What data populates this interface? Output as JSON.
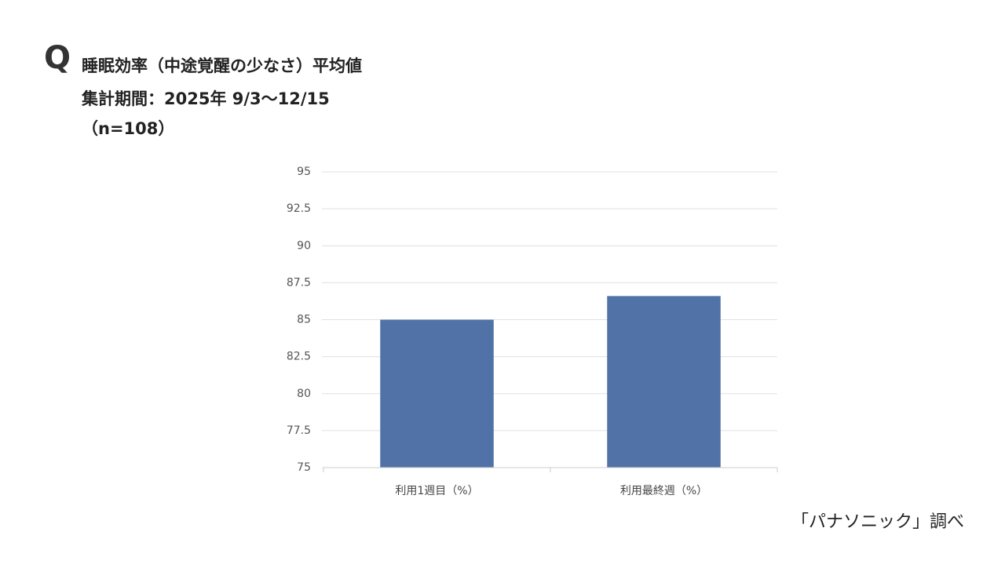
{
  "chart_data": {
    "type": "bar",
    "q_mark": "Q",
    "title": "睡眠効率（中途覚醒の少なさ）平均値",
    "subtitle": "集計期間：2025年 9/3〜12/15",
    "sample": "（n=108）",
    "source": "「パナソニック」調べ",
    "categories": [
      "利用1週目（%）",
      "利用最終週（%）"
    ],
    "values": [
      85,
      86.6
    ],
    "color": "#5072a7",
    "ylim": [
      75,
      95
    ],
    "yticks": [
      75,
      77.5,
      80,
      82.5,
      85,
      87.5,
      90,
      92.5,
      95
    ],
    "grid": true
  }
}
